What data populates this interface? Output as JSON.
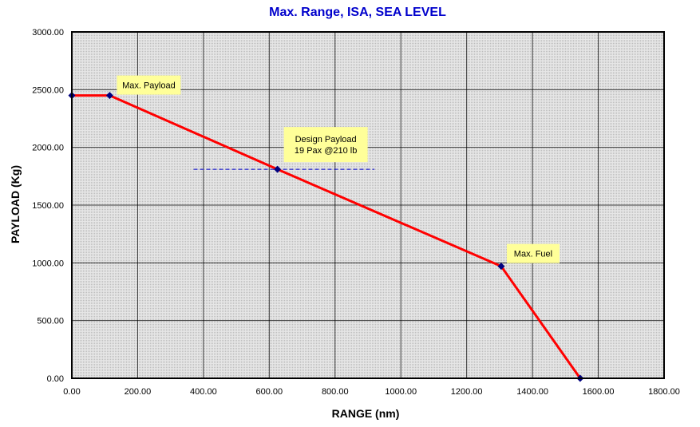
{
  "chart_data": {
    "type": "line",
    "title": "Max. Range, ISA, SEA LEVEL",
    "xlabel": "RANGE (nm)",
    "ylabel": "PAYLOAD (Kg)",
    "xlim": [
      0,
      1800
    ],
    "ylim": [
      0,
      3000
    ],
    "x_ticks": [
      "0.00",
      "200.00",
      "400.00",
      "600.00",
      "800.00",
      "1000.00",
      "1200.00",
      "1400.00",
      "1600.00",
      "1800.00"
    ],
    "y_ticks": [
      "0.00",
      "500.00",
      "1000.00",
      "1500.00",
      "2000.00",
      "2500.00",
      "3000.00"
    ],
    "x_tick_values": [
      0,
      200,
      400,
      600,
      800,
      1000,
      1200,
      1400,
      1600,
      1800
    ],
    "y_tick_values": [
      0,
      500,
      1000,
      1500,
      2000,
      2500,
      3000
    ],
    "grid": true,
    "series": [
      {
        "color": "#ff0000",
        "marker_color": "#00007f",
        "x": [
          0,
          115,
          625,
          1305,
          1545
        ],
        "y": [
          2450,
          2450,
          1810,
          970,
          0
        ]
      }
    ],
    "reference_line": {
      "x": [
        370,
        920
      ],
      "y": 1810,
      "color": "#0000cc",
      "style": "dashed"
    },
    "annotations": [
      {
        "text": [
          "Max. Payload"
        ],
        "x": 115,
        "y": 2450
      },
      {
        "text": [
          "Design Payload",
          "19 Pax @210 lb"
        ],
        "x": 625,
        "y": 1810
      },
      {
        "text": [
          "Max. Fuel"
        ],
        "x": 1305,
        "y": 970
      }
    ],
    "colors": {
      "plot_background": "#d9d9d9",
      "annotation_background": "#ffff99",
      "title": "#0000cc"
    }
  }
}
